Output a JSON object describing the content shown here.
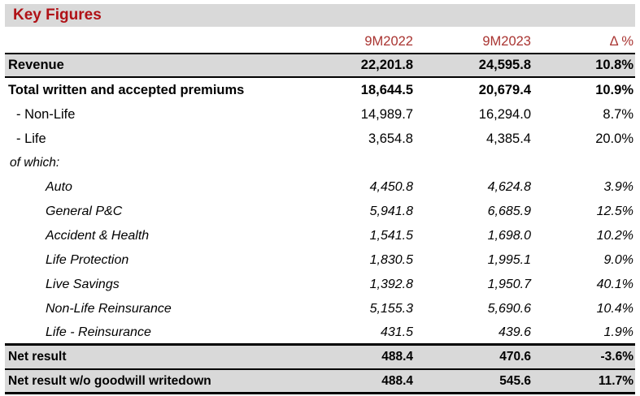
{
  "chart_data": {
    "type": "table",
    "title": "Key Figures",
    "columns": [
      "9M2022",
      "9M2023",
      "Δ %"
    ],
    "rows": [
      {
        "label": "Revenue",
        "v2022": "22,201.8",
        "v2023": "24,595.8",
        "delta": "10.8%"
      },
      {
        "label": "Total written and accepted premiums",
        "v2022": "18,644.5",
        "v2023": "20,679.4",
        "delta": "10.9%"
      },
      {
        "label": "- Non-Life",
        "v2022": "14,989.7",
        "v2023": "16,294.0",
        "delta": "8.7%"
      },
      {
        "label": "- Life",
        "v2022": "3,654.8",
        "v2023": "4,385.4",
        "delta": "20.0%"
      },
      {
        "label": "of which:",
        "v2022": "",
        "v2023": "",
        "delta": ""
      },
      {
        "label": "Auto",
        "v2022": "4,450.8",
        "v2023": "4,624.8",
        "delta": "3.9%"
      },
      {
        "label": "General P&C",
        "v2022": "5,941.8",
        "v2023": "6,685.9",
        "delta": "12.5%"
      },
      {
        "label": "Accident & Health",
        "v2022": "1,541.5",
        "v2023": "1,698.0",
        "delta": "10.2%"
      },
      {
        "label": "Life Protection",
        "v2022": "1,830.5",
        "v2023": "1,995.1",
        "delta": "9.0%"
      },
      {
        "label": "Live Savings",
        "v2022": "1,392.8",
        "v2023": "1,950.7",
        "delta": "40.1%"
      },
      {
        "label": "Non-Life Reinsurance",
        "v2022": "5,155.3",
        "v2023": "5,690.6",
        "delta": "10.4%"
      },
      {
        "label": "Life - Reinsurance",
        "v2022": "431.5",
        "v2023": "439.6",
        "delta": "1.9%"
      },
      {
        "label": "Net result",
        "v2022": "488.4",
        "v2023": "470.6",
        "delta": "-3.6%"
      },
      {
        "label": "Net result w/o goodwill writedown",
        "v2022": "488.4",
        "v2023": "545.6",
        "delta": "11.7%"
      }
    ]
  },
  "colors": {
    "title_red": "#B01116",
    "header_red": "#A93431",
    "row_gray": "#D9D9D9",
    "border_black": "#000000",
    "background": "#FFFFFF"
  }
}
